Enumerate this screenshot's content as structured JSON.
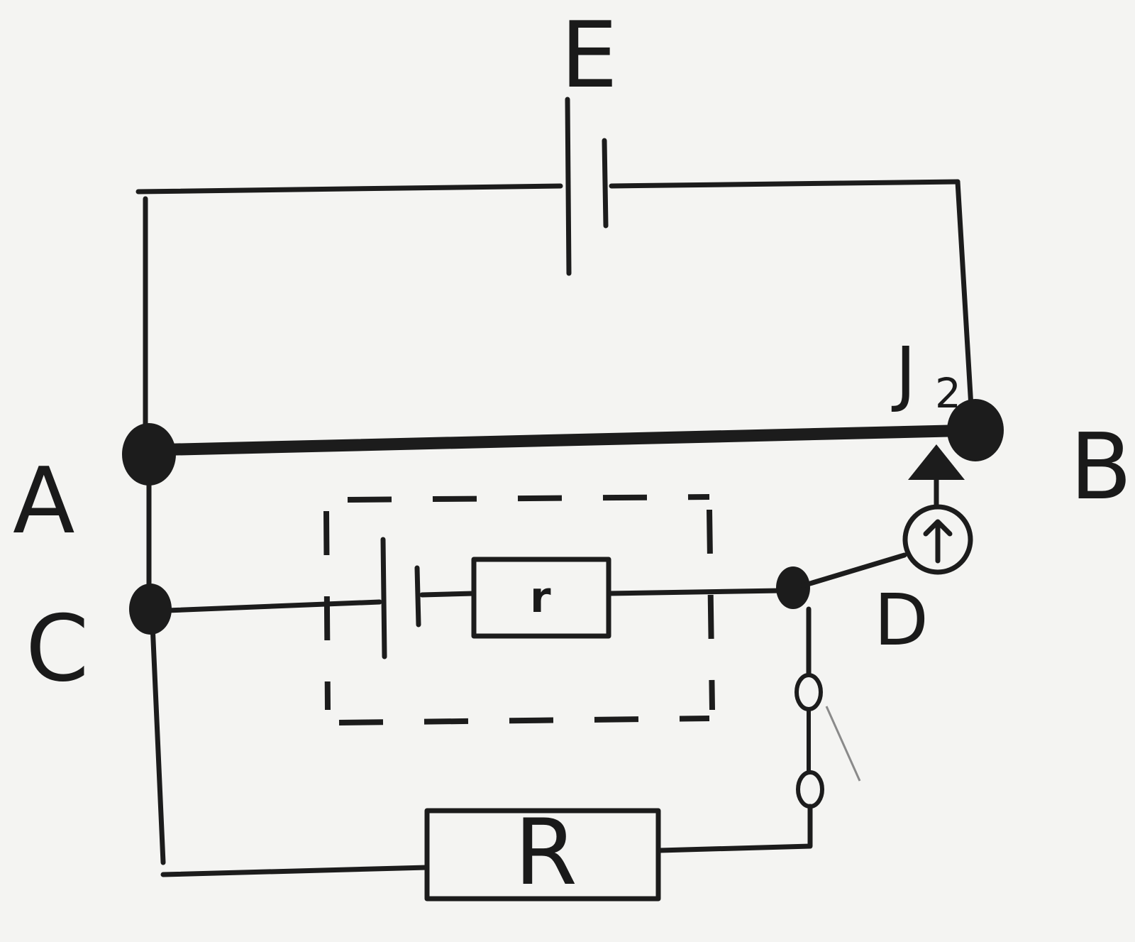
{
  "labels": {
    "emf": "E",
    "A": "A",
    "B": "B",
    "C": "C",
    "D": "D",
    "jockey": "J",
    "jockey_sub": "2",
    "internal_resistor": "r",
    "external_resistor": "R"
  },
  "colors": {
    "ink": "#1c1c1c",
    "paper": "#f4f4f2"
  },
  "icons": [
    "galvanometer-icon",
    "cell-icon",
    "switch-icon"
  ]
}
